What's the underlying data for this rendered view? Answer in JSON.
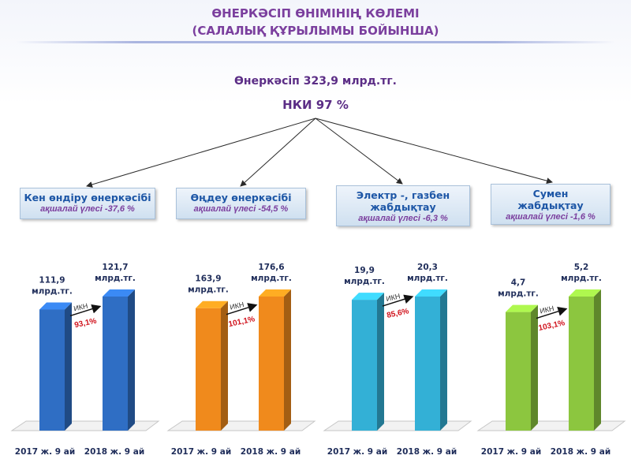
{
  "title": {
    "line1": "ӨНЕРКӘСІП ӨНІМІНІҢ КӨЛЕМІ",
    "line2": "(САЛАЛЫҚ ҚҰРЫЛЫМЫ БОЙЫНША)"
  },
  "summary": {
    "line1": "Өнеркәсіп 323,9 млрд.тг.",
    "line2": "НКИ 97 %"
  },
  "sectors": [
    {
      "name": "Кен өндіру өнеркәсібі",
      "share": "ақшалай үлесі -37,6 %"
    },
    {
      "name": "Өңдеу өнеркәсібі",
      "share": "ақшалай үлесі -54,5 %"
    },
    {
      "name_line1": "Электр -, газбен",
      "name_line2": "жабдықтау",
      "share": "ақшалай үлесі -6,3 %"
    },
    {
      "name_line1": "Сумен",
      "name_line2": "жабдықтау",
      "share": "ақшалай үлесі -1,6 %"
    }
  ],
  "colors": {
    "mining": "#2f6ec4",
    "manufacturing": "#f08a1c",
    "electricity": "#33b0d6",
    "water": "#8cc63f",
    "title": "#7b3f9e",
    "percent": "#d0111b"
  },
  "chart_data": [
    {
      "type": "bar",
      "categories": [
        "2017 ж. 9 ай",
        "2018 ж. 9 ай"
      ],
      "values": [
        111.9,
        121.7
      ],
      "value_labels": [
        [
          "111,9",
          "млрд.тг."
        ],
        [
          "121,7",
          "млрд.тг."
        ]
      ],
      "ikn_label": "ИКН",
      "ikn_value": "93,1%",
      "color": "#2f6ec4"
    },
    {
      "type": "bar",
      "categories": [
        "2017 ж. 9 ай",
        "2018 ж. 9 ай"
      ],
      "values": [
        163.9,
        176.6
      ],
      "value_labels": [
        [
          "163,9",
          "млрд.тг."
        ],
        [
          "176,6",
          "млрд.тг."
        ]
      ],
      "ikn_label": "ИКН",
      "ikn_value": "101,1%",
      "color": "#f08a1c"
    },
    {
      "type": "bar",
      "categories": [
        "2017 ж. 9 ай",
        "2018 ж. 9 ай"
      ],
      "values": [
        19.9,
        20.3
      ],
      "value_labels": [
        [
          "19,9",
          "млрд.тг."
        ],
        [
          "20,3",
          "млрд.тг."
        ]
      ],
      "ikn_label": "ИКН",
      "ikn_value": "85,6%",
      "color": "#33b0d6"
    },
    {
      "type": "bar",
      "categories": [
        "2017 ж. 9 ай",
        "2018 ж. 9 ай"
      ],
      "values": [
        4.7,
        5.2
      ],
      "value_labels": [
        [
          "4,7",
          "млрд.тг."
        ],
        [
          "5,2",
          "млрд.тг."
        ]
      ],
      "ikn_label": "ИКН",
      "ikn_value": "103,1%",
      "color": "#8cc63f"
    }
  ]
}
